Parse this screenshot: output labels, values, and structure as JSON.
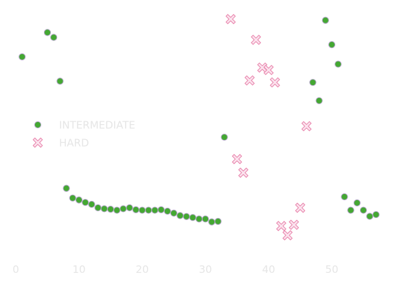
{
  "chart_data": {
    "type": "scatter",
    "title": "",
    "xlabel": "",
    "ylabel": "",
    "xlim": [
      0,
      58
    ],
    "ylim": [
      0,
      100
    ],
    "x_ticks": [
      0,
      10,
      20,
      30,
      40,
      50
    ],
    "x_tick_labels": [
      "0",
      "10",
      "20",
      "30",
      "40",
      "50"
    ],
    "grid": false,
    "legend_position": "center-left",
    "series": [
      {
        "name": "INTERMEDIATE",
        "marker": "circle",
        "color": "#44a832",
        "edge_color": "#b3a6c8",
        "points": [
          [
            1,
            82
          ],
          [
            5,
            92
          ],
          [
            6,
            90
          ],
          [
            7,
            72
          ],
          [
            8,
            28
          ],
          [
            9,
            24
          ],
          [
            10,
            23.2
          ],
          [
            11,
            22.2
          ],
          [
            12,
            21.4
          ],
          [
            13,
            20
          ],
          [
            14,
            19.6
          ],
          [
            15,
            19.4
          ],
          [
            16,
            19
          ],
          [
            17,
            19.6
          ],
          [
            18,
            20
          ],
          [
            19,
            19.2
          ],
          [
            20,
            19
          ],
          [
            21,
            19
          ],
          [
            22,
            19
          ],
          [
            23,
            19.2
          ],
          [
            24,
            18.6
          ],
          [
            25,
            17.8
          ],
          [
            26,
            16.8
          ],
          [
            27,
            16.4
          ],
          [
            28,
            16
          ],
          [
            29,
            15.4
          ],
          [
            30,
            15.4
          ],
          [
            31,
            14.2
          ],
          [
            32,
            14.4
          ],
          [
            33,
            49
          ],
          [
            47,
            71.5
          ],
          [
            48,
            64
          ],
          [
            49,
            97
          ],
          [
            50,
            87
          ],
          [
            51,
            79
          ],
          [
            52,
            24.5
          ],
          [
            53,
            19
          ],
          [
            54,
            22
          ],
          [
            55,
            19
          ],
          [
            56,
            16.5
          ],
          [
            57,
            17.2
          ]
        ]
      },
      {
        "name": "HARD",
        "marker": "x",
        "color": "#fbe3ee",
        "edge_color": "#e882aa",
        "points": [
          [
            34,
            97.5
          ],
          [
            35,
            40
          ],
          [
            36,
            34.4
          ],
          [
            37,
            72.3
          ],
          [
            38,
            89
          ],
          [
            39,
            77.6
          ],
          [
            40,
            76.6
          ],
          [
            41,
            71.5
          ],
          [
            42,
            12.5
          ],
          [
            43,
            8.7
          ],
          [
            44,
            13
          ],
          [
            45,
            20
          ],
          [
            46,
            53.5
          ]
        ]
      }
    ]
  }
}
